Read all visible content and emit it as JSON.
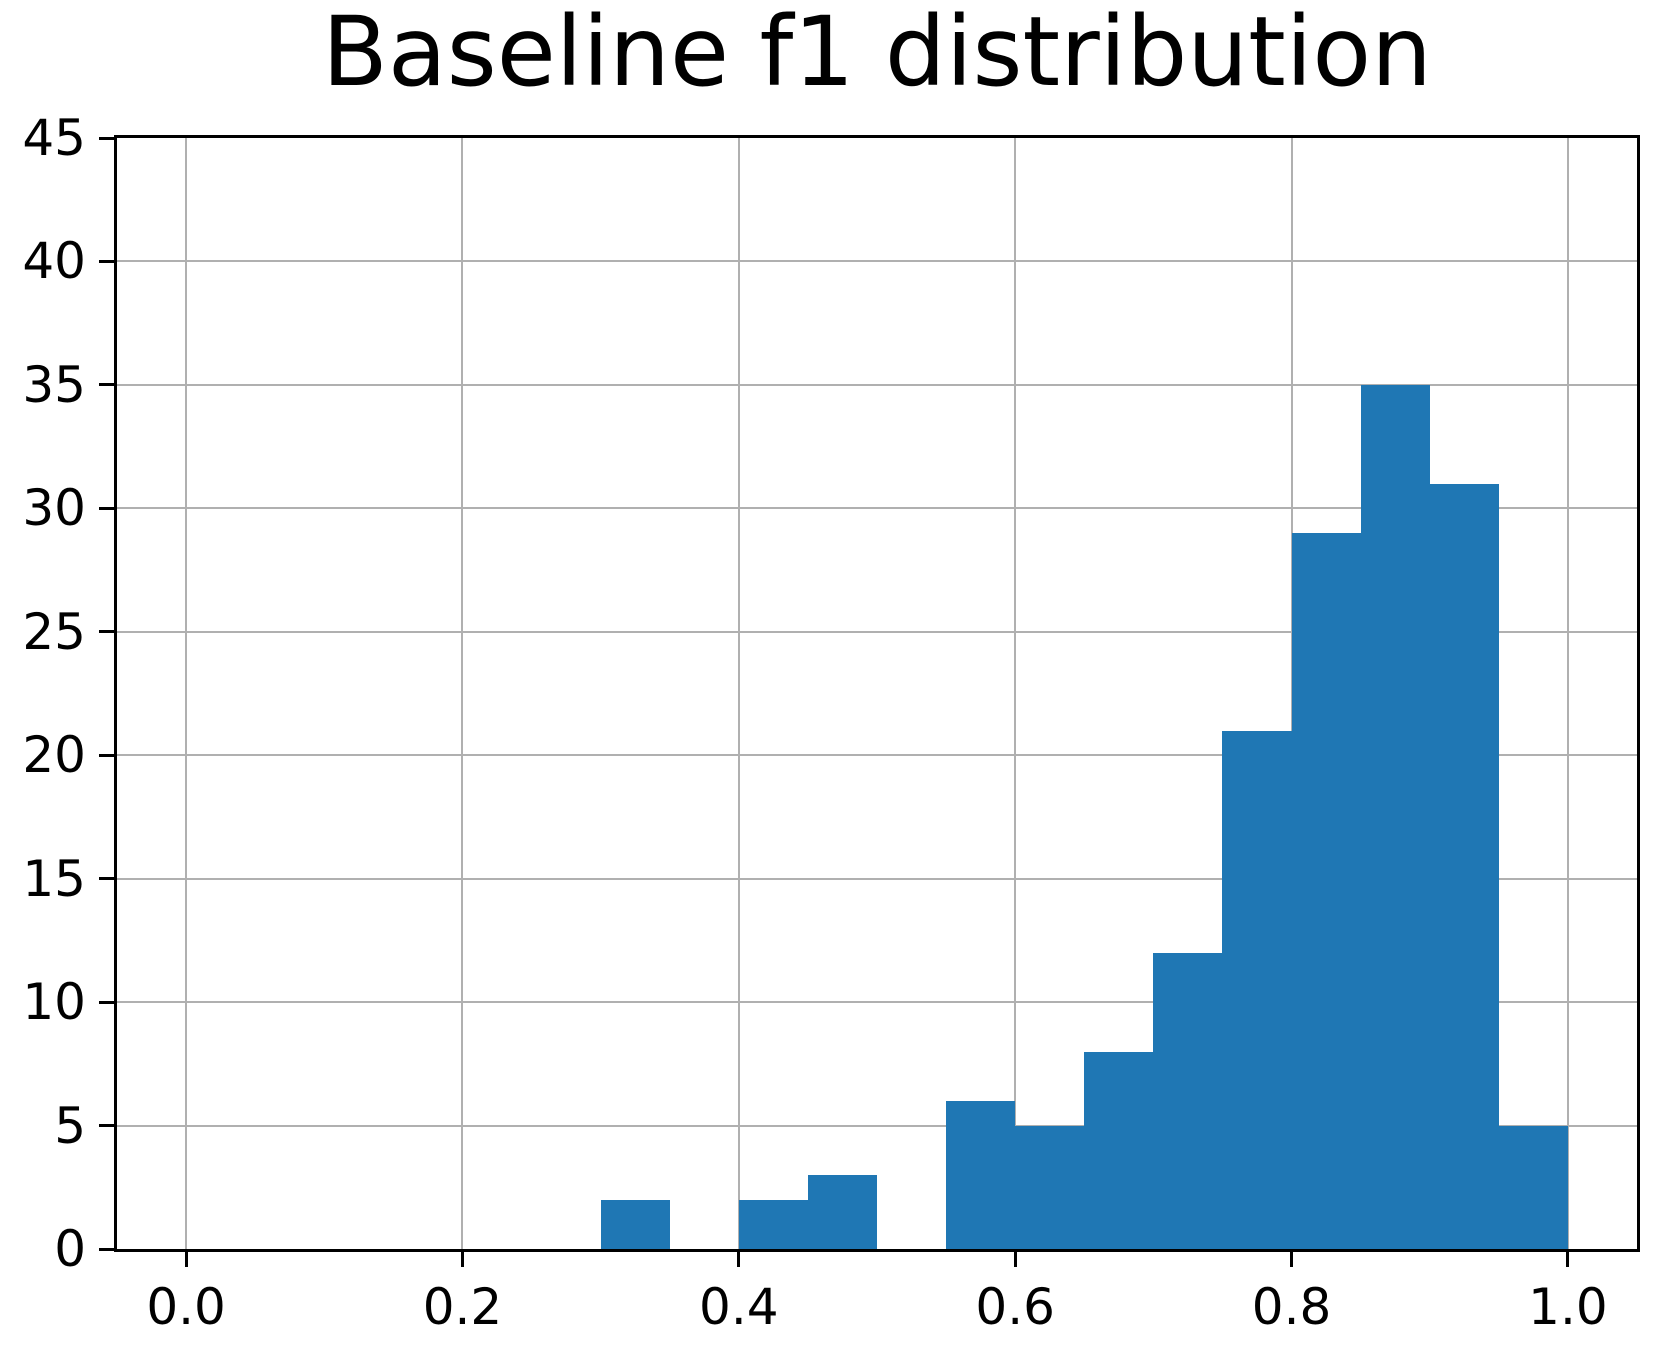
{
  "title": "Baseline f1 distribution",
  "colors": {
    "bar": "#1f77b4",
    "grid": "#b0b0b0",
    "spine": "#000000",
    "background": "#ffffff",
    "text": "#000000"
  },
  "chart_data": {
    "type": "bar",
    "subtype": "histogram",
    "title": "Baseline f1 distribution",
    "xlabel": "",
    "ylabel": "",
    "xlim": [
      -0.05,
      1.05
    ],
    "ylim": [
      0,
      45
    ],
    "grid": true,
    "legend": "none",
    "bin_width": 0.05,
    "bin_starts": [
      0.3,
      0.35,
      0.4,
      0.45,
      0.5,
      0.55,
      0.6,
      0.65,
      0.7,
      0.75,
      0.8,
      0.85,
      0.9,
      0.95
    ],
    "values": [
      2,
      0,
      2,
      3,
      0,
      6,
      5,
      8,
      12,
      21,
      29,
      35,
      31,
      5
    ],
    "x_tick_values": [
      0.0,
      0.2,
      0.4,
      0.6,
      0.8,
      1.0
    ],
    "x_tick_labels": [
      "0.0",
      "0.2",
      "0.4",
      "0.6",
      "0.8",
      "1.0"
    ],
    "y_tick_values": [
      0,
      5,
      10,
      15,
      20,
      25,
      30,
      35,
      40,
      45
    ],
    "y_tick_labels": [
      "0",
      "5",
      "10",
      "15",
      "20",
      "25",
      "30",
      "35",
      "40",
      "45"
    ]
  }
}
